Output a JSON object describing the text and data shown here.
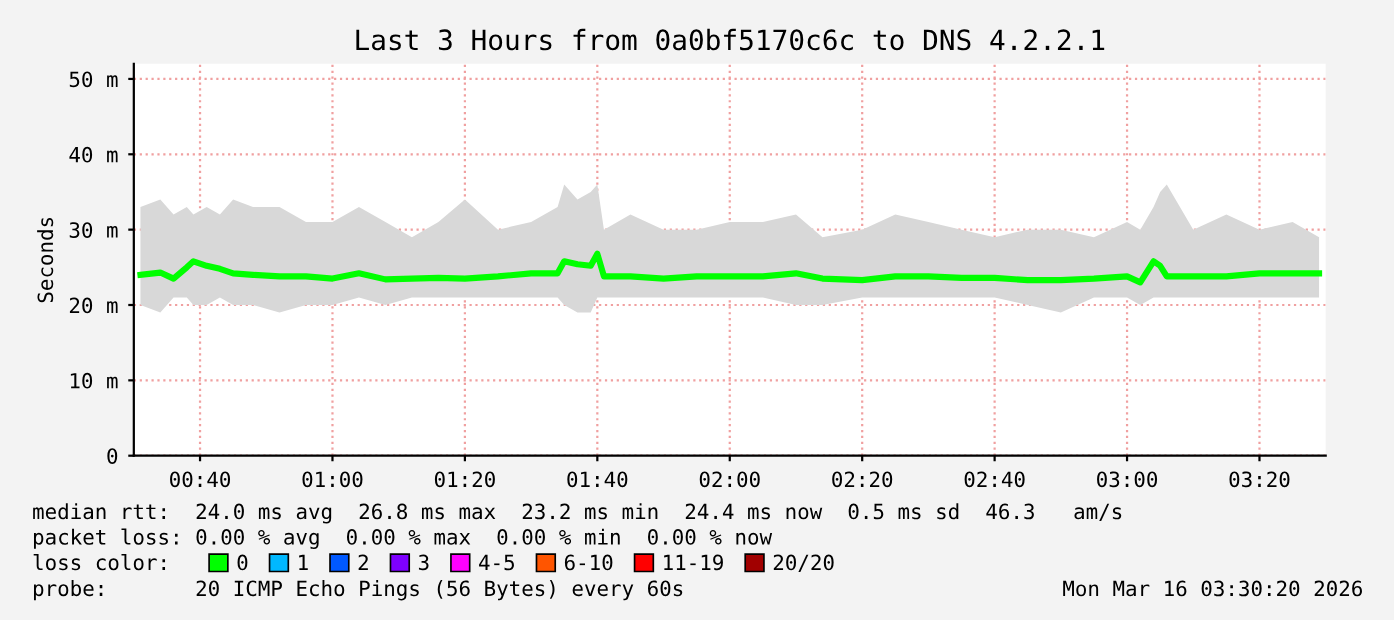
{
  "chart_data": {
    "type": "line",
    "title": "Last 3 Hours from 0a0bf5170c6c to DNS 4.2.2.1",
    "ylabel": "Seconds",
    "x": [
      "2026-03-16T00:31",
      "2026-03-16T00:34",
      "2026-03-16T00:36",
      "2026-03-16T00:38",
      "2026-03-16T00:39",
      "2026-03-16T00:41",
      "2026-03-16T00:43",
      "2026-03-16T00:45",
      "2026-03-16T00:48",
      "2026-03-16T00:52",
      "2026-03-16T00:56",
      "2026-03-16T01:00",
      "2026-03-16T01:04",
      "2026-03-16T01:08",
      "2026-03-16T01:12",
      "2026-03-16T01:16",
      "2026-03-16T01:20",
      "2026-03-16T01:25",
      "2026-03-16T01:30",
      "2026-03-16T01:34",
      "2026-03-16T01:35",
      "2026-03-16T01:37",
      "2026-03-16T01:39",
      "2026-03-16T01:40",
      "2026-03-16T01:41",
      "2026-03-16T01:45",
      "2026-03-16T01:50",
      "2026-03-16T01:55",
      "2026-03-16T02:00",
      "2026-03-16T02:05",
      "2026-03-16T02:10",
      "2026-03-16T02:14",
      "2026-03-16T02:20",
      "2026-03-16T02:25",
      "2026-03-16T02:30",
      "2026-03-16T02:35",
      "2026-03-16T02:40",
      "2026-03-16T02:45",
      "2026-03-16T02:50",
      "2026-03-16T02:55",
      "2026-03-16T03:00",
      "2026-03-16T03:02",
      "2026-03-16T03:04",
      "2026-03-16T03:05",
      "2026-03-16T03:06",
      "2026-03-16T03:10",
      "2026-03-16T03:15",
      "2026-03-16T03:20",
      "2026-03-16T03:25",
      "2026-03-16T03:29"
    ],
    "series": [
      {
        "name": "0",
        "color": "#00ff00",
        "values": [
          24.0,
          24.3,
          23.5,
          25.0,
          25.8,
          25.2,
          24.8,
          24.2,
          24.0,
          23.8,
          23.8,
          23.5,
          24.2,
          23.4,
          23.5,
          23.6,
          23.5,
          23.8,
          24.2,
          24.2,
          25.8,
          25.4,
          25.2,
          26.8,
          23.8,
          23.8,
          23.5,
          23.8,
          23.8,
          23.8,
          24.2,
          23.5,
          23.3,
          23.8,
          23.8,
          23.6,
          23.6,
          23.3,
          23.3,
          23.5,
          23.8,
          23.0,
          25.8,
          25.2,
          23.8,
          23.8,
          23.8,
          24.2,
          24.2,
          24.2
        ],
        "lower": [
          20,
          19,
          21,
          21,
          20,
          20,
          21,
          20,
          20,
          19,
          20,
          20,
          21,
          20,
          21,
          21,
          21,
          21,
          21,
          21,
          20,
          19,
          19,
          21,
          21,
          21,
          21,
          21,
          21,
          21,
          20,
          20,
          21,
          21,
          21,
          21,
          21,
          20,
          19,
          21,
          21,
          20,
          21,
          21,
          21,
          21,
          21,
          21,
          21,
          21
        ],
        "upper": [
          33,
          34,
          32,
          33,
          32,
          33,
          32,
          34,
          33,
          33,
          31,
          31,
          33,
          31,
          29,
          31,
          34,
          30,
          31,
          33,
          36,
          34,
          35,
          36,
          30,
          32,
          30,
          30,
          31,
          31,
          32,
          29,
          30,
          32,
          31,
          30,
          29,
          30,
          30,
          29,
          31,
          30,
          33,
          35,
          36,
          30,
          32,
          30,
          31,
          29
        ]
      },
      {
        "name": "1",
        "color": "#00b8ff",
        "values": [
          null,
          null,
          null,
          null,
          null,
          null,
          null,
          null,
          null,
          null,
          null,
          null,
          null,
          null,
          null,
          null,
          null,
          null,
          null,
          null,
          null,
          null,
          null,
          null,
          null,
          null,
          null,
          null,
          null,
          null,
          null,
          null,
          null,
          null,
          null,
          null,
          null,
          null,
          null,
          null,
          null,
          null,
          null,
          null,
          null,
          null,
          null,
          null,
          null,
          null
        ]
      },
      {
        "name": "2",
        "color": "#0059ff",
        "values": [
          null,
          null,
          null,
          null,
          null,
          null,
          null,
          null,
          null,
          null,
          null,
          null,
          null,
          null,
          null,
          null,
          null,
          null,
          null,
          null,
          null,
          null,
          null,
          null,
          null,
          null,
          null,
          null,
          null,
          null,
          null,
          null,
          null,
          null,
          null,
          null,
          null,
          null,
          null,
          null,
          null,
          null,
          null,
          null,
          null,
          null,
          null,
          null,
          null,
          null
        ]
      },
      {
        "name": "3",
        "color": "#7e00ff",
        "values": [
          null,
          null,
          null,
          null,
          null,
          null,
          null,
          null,
          null,
          null,
          null,
          null,
          null,
          null,
          null,
          null,
          null,
          null,
          null,
          null,
          null,
          null,
          null,
          null,
          null,
          null,
          null,
          null,
          null,
          null,
          null,
          null,
          null,
          null,
          null,
          null,
          null,
          null,
          null,
          null,
          null,
          null,
          null,
          null,
          null,
          null,
          null,
          null,
          null,
          null
        ]
      },
      {
        "name": "4-5",
        "color": "#ff00ff",
        "values": [
          null,
          null,
          null,
          null,
          null,
          null,
          null,
          null,
          null,
          null,
          null,
          null,
          null,
          null,
          null,
          null,
          null,
          null,
          null,
          null,
          null,
          null,
          null,
          null,
          null,
          null,
          null,
          null,
          null,
          null,
          null,
          null,
          null,
          null,
          null,
          null,
          null,
          null,
          null,
          null,
          null,
          null,
          null,
          null,
          null,
          null,
          null,
          null,
          null,
          null
        ]
      },
      {
        "name": "6-10",
        "color": "#ff5500",
        "values": [
          null,
          null,
          null,
          null,
          null,
          null,
          null,
          null,
          null,
          null,
          null,
          null,
          null,
          null,
          null,
          null,
          null,
          null,
          null,
          null,
          null,
          null,
          null,
          null,
          null,
          null,
          null,
          null,
          null,
          null,
          null,
          null,
          null,
          null,
          null,
          null,
          null,
          null,
          null,
          null,
          null,
          null,
          null,
          null,
          null,
          null,
          null,
          null,
          null,
          null
        ]
      },
      {
        "name": "11-19",
        "color": "#ff0000",
        "values": [
          null,
          null,
          null,
          null,
          null,
          null,
          null,
          null,
          null,
          null,
          null,
          null,
          null,
          null,
          null,
          null,
          null,
          null,
          null,
          null,
          null,
          null,
          null,
          null,
          null,
          null,
          null,
          null,
          null,
          null,
          null,
          null,
          null,
          null,
          null,
          null,
          null,
          null,
          null,
          null,
          null,
          null,
          null,
          null,
          null,
          null,
          null,
          null,
          null,
          null
        ]
      },
      {
        "name": "20/20",
        "color": "#a10000",
        "values": [
          null,
          null,
          null,
          null,
          null,
          null,
          null,
          null,
          null,
          null,
          null,
          null,
          null,
          null,
          null,
          null,
          null,
          null,
          null,
          null,
          null,
          null,
          null,
          null,
          null,
          null,
          null,
          null,
          null,
          null,
          null,
          null,
          null,
          null,
          null,
          null,
          null,
          null,
          null,
          null,
          null,
          null,
          null,
          null,
          null,
          null,
          null,
          null,
          null,
          null
        ]
      }
    ],
    "xlim": [
      "2026-03-16T00:30",
      "2026-03-16T03:30"
    ],
    "xticks": [
      {
        "value": "2026-03-16T00:40",
        "label": "00:40"
      },
      {
        "value": "2026-03-16T01:00",
        "label": "01:00"
      },
      {
        "value": "2026-03-16T01:20",
        "label": "01:20"
      },
      {
        "value": "2026-03-16T01:40",
        "label": "01:40"
      },
      {
        "value": "2026-03-16T02:00",
        "label": "02:00"
      },
      {
        "value": "2026-03-16T02:20",
        "label": "02:20"
      },
      {
        "value": "2026-03-16T02:40",
        "label": "02:40"
      },
      {
        "value": "2026-03-16T03:00",
        "label": "03:00"
      },
      {
        "value": "2026-03-16T03:20",
        "label": "03:20"
      }
    ],
    "ylim": [
      0,
      52
    ],
    "yticks": [
      0,
      {
        "value": 10,
        "label": "10 m"
      },
      {
        "value": 20,
        "label": "20 m"
      },
      {
        "value": 30,
        "label": "30 m"
      },
      {
        "value": 40,
        "label": "40 m"
      },
      {
        "value": 50,
        "label": "50 m"
      }
    ],
    "grid": true,
    "legend": "bottom",
    "legend_title": "loss color:",
    "annotations": [
      "median rtt:  24.0 ms avg  26.8 ms max  23.2 ms min  24.4 ms now  0.5 ms sd  46.3   am/s",
      "packet loss: 0.00 % avg  0.00 % max  0.00 % min  0.00 % now",
      "probe:       20 ICMP Echo Pings (56 Bytes) every 60s",
      "Mon Mar 16 03:30:20 2026"
    ]
  }
}
